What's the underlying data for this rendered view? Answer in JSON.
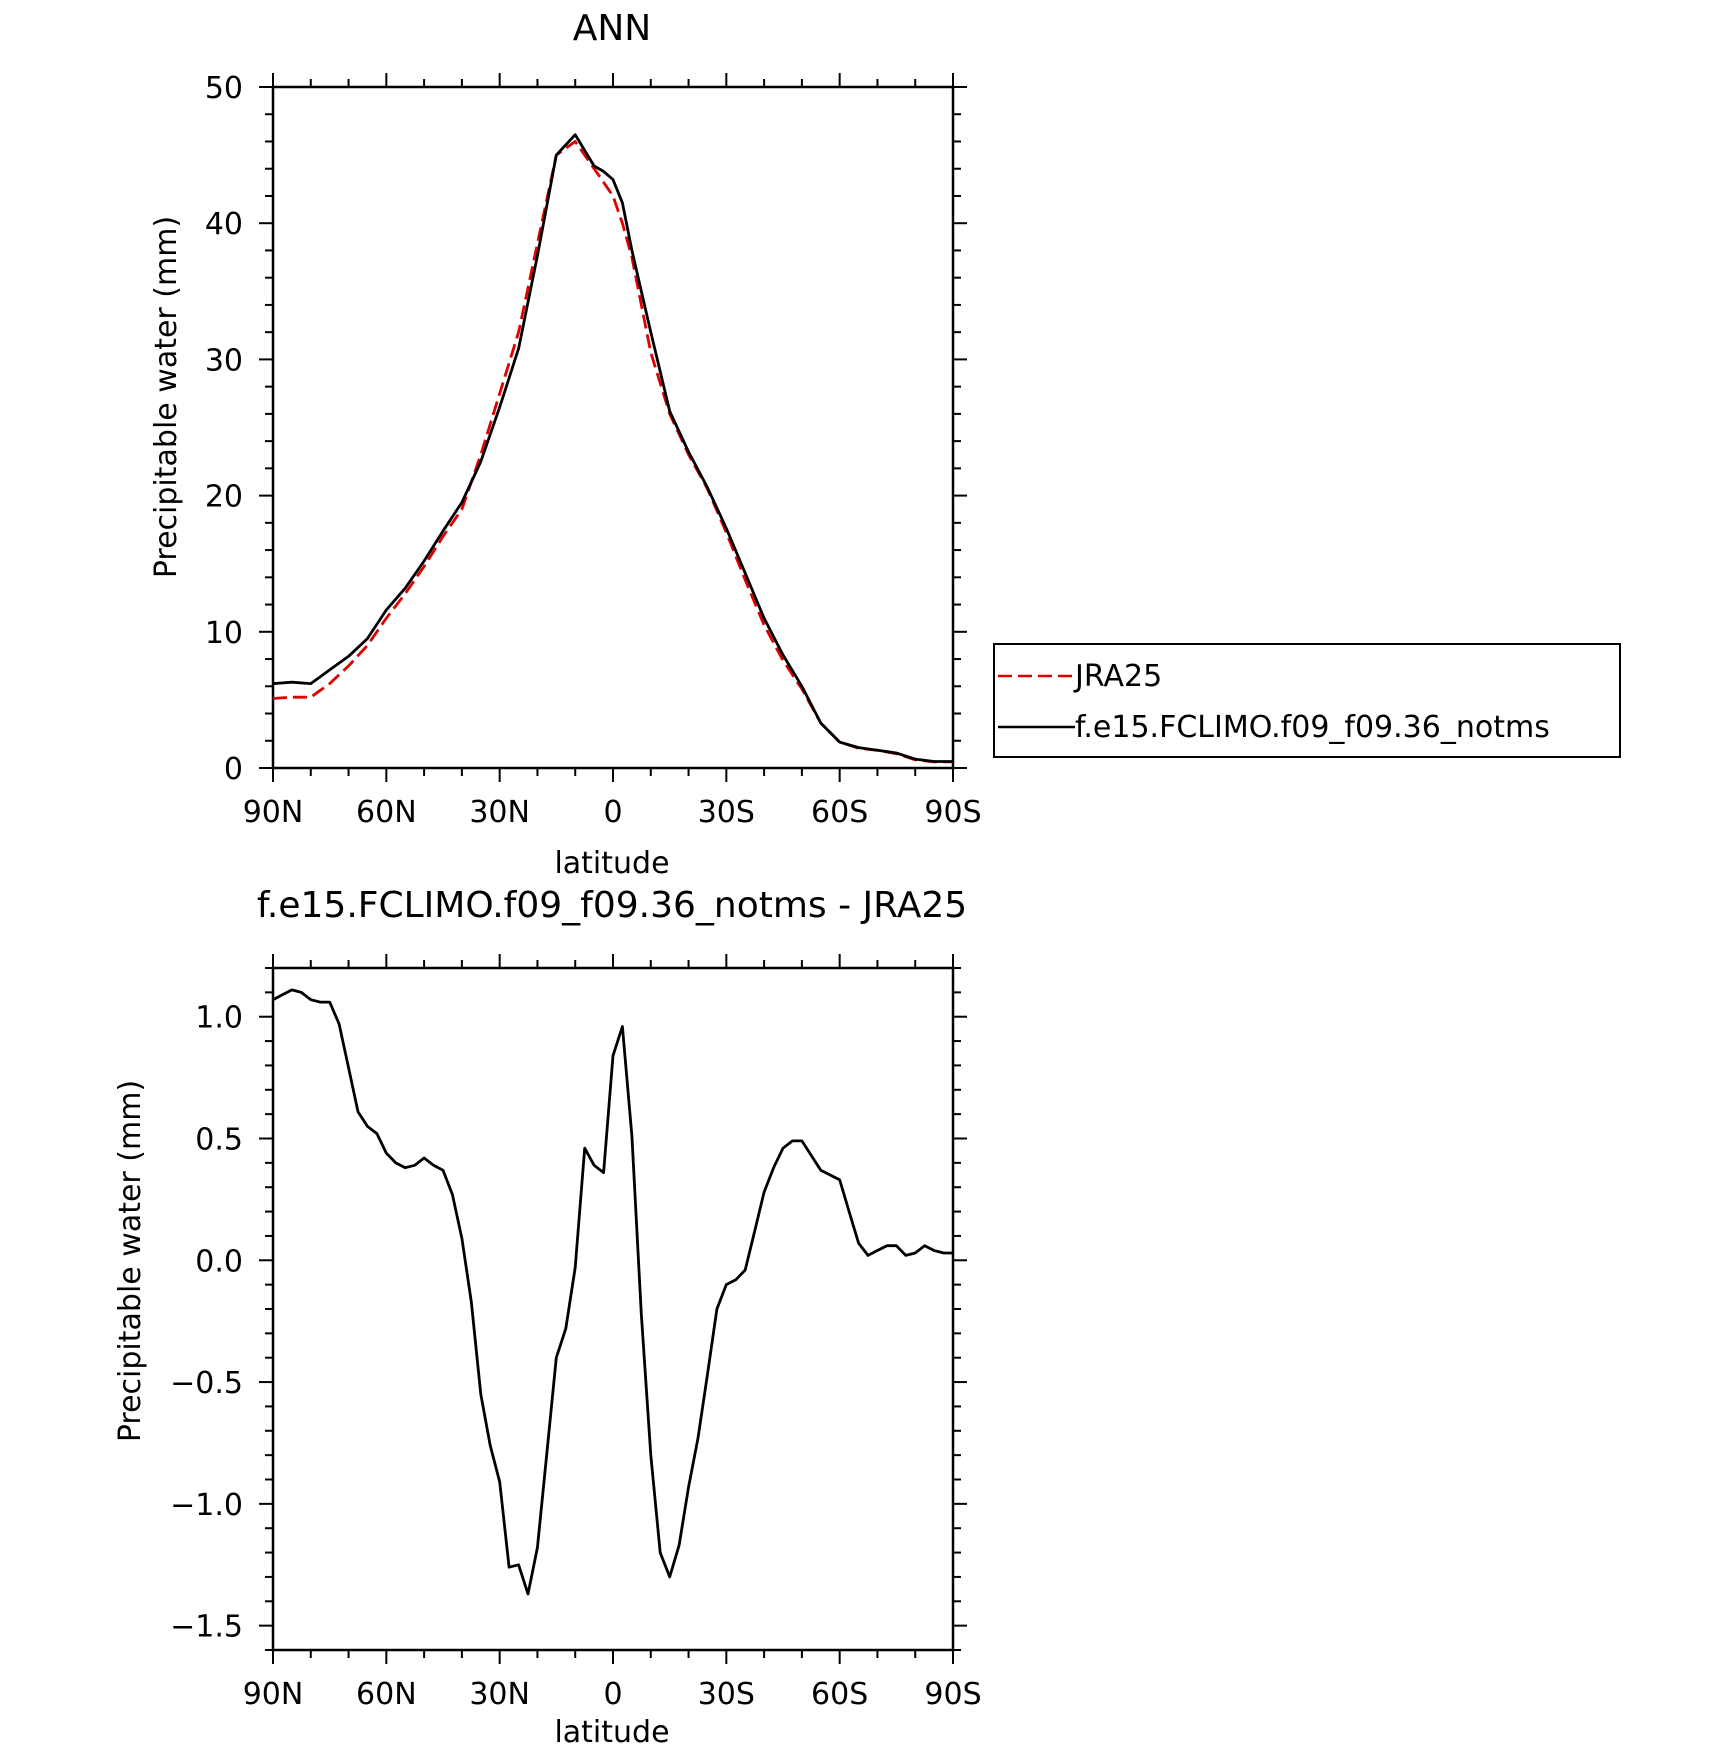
{
  "chart_data": [
    {
      "type": "line",
      "title": "ANN",
      "xlabel": "latitude",
      "ylabel": "Precipitable water (mm)",
      "xlim": [
        90,
        -90
      ],
      "ylim": [
        0,
        50
      ],
      "x_ticks": [
        {
          "value": 90,
          "label": "90N"
        },
        {
          "value": 60,
          "label": "60N"
        },
        {
          "value": 30,
          "label": "30N"
        },
        {
          "value": 0,
          "label": "0"
        },
        {
          "value": -30,
          "label": "30S"
        },
        {
          "value": -60,
          "label": "60S"
        },
        {
          "value": -90,
          "label": "90S"
        }
      ],
      "y_ticks": [
        {
          "value": 0,
          "label": "0"
        },
        {
          "value": 10,
          "label": "10"
        },
        {
          "value": 20,
          "label": "20"
        },
        {
          "value": 30,
          "label": "30"
        },
        {
          "value": 40,
          "label": "40"
        },
        {
          "value": 50,
          "label": "50"
        }
      ],
      "legend": {
        "position": "right",
        "framed": true
      },
      "series": [
        {
          "name": "JRA25",
          "color": "#e00000",
          "dash": "dashed",
          "x": [
            90,
            85,
            80,
            75,
            70,
            65,
            60,
            55,
            50,
            45,
            40,
            35,
            30,
            25,
            20,
            15,
            10,
            5,
            2.5,
            0,
            -2.5,
            -5,
            -10,
            -15,
            -20,
            -25,
            -30,
            -35,
            -40,
            -45,
            -50,
            -55,
            -60,
            -65,
            -70,
            -75,
            -80,
            -85,
            -87.5,
            -90
          ],
          "y": [
            5.1,
            5.2,
            5.2,
            6.2,
            7.5,
            9.0,
            11.0,
            12.8,
            14.8,
            17.0,
            19.0,
            23.0,
            27.5,
            32.0,
            38.5,
            45.0,
            46.0,
            44.0,
            43.0,
            42.0,
            40.0,
            37.5,
            30.5,
            26.0,
            23.0,
            20.5,
            17.3,
            13.8,
            10.5,
            7.9,
            5.8,
            3.3,
            1.9,
            1.45,
            1.3,
            1.05,
            0.6,
            0.45,
            0.45,
            0.45
          ]
        },
        {
          "name": "f.e15.FCLIMO.f09_f09.36_notms",
          "color": "#000000",
          "dash": "solid",
          "x": [
            90,
            85,
            80,
            75,
            70,
            65,
            60,
            55,
            50,
            45,
            40,
            35,
            30,
            25,
            20,
            15,
            10,
            5,
            2.5,
            0,
            -2.5,
            -5,
            -10,
            -15,
            -20,
            -25,
            -30,
            -35,
            -40,
            -45,
            -50,
            -55,
            -60,
            -65,
            -70,
            -75,
            -80,
            -85,
            -87.5,
            -90
          ],
          "y": [
            6.2,
            6.3,
            6.2,
            7.2,
            8.2,
            9.5,
            11.6,
            13.2,
            15.2,
            17.4,
            19.5,
            22.5,
            26.5,
            30.8,
            37.6,
            45.0,
            46.5,
            44.2,
            43.8,
            43.2,
            41.5,
            38.0,
            32.0,
            26.2,
            23.2,
            20.6,
            17.6,
            14.3,
            11.0,
            8.3,
            6.0,
            3.3,
            1.9,
            1.5,
            1.3,
            1.1,
            0.65,
            0.48,
            0.48,
            0.48
          ]
        }
      ]
    },
    {
      "type": "line",
      "title": "f.e15.FCLIMO.f09_f09.36_notms - JRA25",
      "xlabel": "latitude",
      "ylabel": "Precipitable water (mm)",
      "xlim": [
        90,
        -90
      ],
      "ylim": [
        -1.6,
        1.2
      ],
      "x_ticks": [
        {
          "value": 90,
          "label": "90N"
        },
        {
          "value": 60,
          "label": "60N"
        },
        {
          "value": 30,
          "label": "30N"
        },
        {
          "value": 0,
          "label": "0"
        },
        {
          "value": -30,
          "label": "30S"
        },
        {
          "value": -60,
          "label": "60S"
        },
        {
          "value": -90,
          "label": "90S"
        }
      ],
      "y_ticks": [
        {
          "value": -1.5,
          "label": "−1.5"
        },
        {
          "value": -1.0,
          "label": "−1.0"
        },
        {
          "value": -0.5,
          "label": "−0.5"
        },
        {
          "value": 0.0,
          "label": "0.0"
        },
        {
          "value": 0.5,
          "label": "0.5"
        },
        {
          "value": 1.0,
          "label": "1.0"
        }
      ],
      "series": [
        {
          "color": "#000000",
          "dash": "solid",
          "x": [
            90,
            87.5,
            85,
            82.5,
            80,
            77.5,
            75,
            72.5,
            70,
            67.5,
            65,
            62.5,
            60,
            57.5,
            55,
            52.5,
            50,
            47.5,
            45,
            42.5,
            40,
            37.5,
            35,
            32.5,
            30,
            27.5,
            25,
            22.5,
            20,
            17.5,
            15,
            12.5,
            10,
            7.5,
            5,
            2.5,
            0,
            -2.5,
            -5,
            -7.5,
            -10,
            -12.5,
            -15,
            -17.5,
            -20,
            -22.5,
            -25,
            -27.5,
            -30,
            -32.5,
            -35,
            -37.5,
            -40,
            -42.5,
            -45,
            -47.5,
            -50,
            -52.5,
            -55,
            -57.5,
            -60,
            -62.5,
            -65,
            -67.5,
            -70,
            -72.5,
            -75,
            -77.5,
            -80,
            -82.5,
            -85,
            -87.5,
            -90
          ],
          "y": [
            1.07,
            1.09,
            1.11,
            1.1,
            1.07,
            1.06,
            1.06,
            0.97,
            0.79,
            0.61,
            0.55,
            0.52,
            0.44,
            0.4,
            0.38,
            0.39,
            0.42,
            0.39,
            0.37,
            0.27,
            0.09,
            -0.17,
            -0.55,
            -0.76,
            -0.91,
            -1.26,
            -1.25,
            -1.37,
            -1.18,
            -0.79,
            -0.4,
            -0.28,
            -0.03,
            0.46,
            0.39,
            0.36,
            0.84,
            0.96,
            0.51,
            -0.22,
            -0.8,
            -1.2,
            -1.3,
            -1.17,
            -0.93,
            -0.73,
            -0.47,
            -0.2,
            -0.1,
            -0.08,
            -0.04,
            0.12,
            0.28,
            0.38,
            0.46,
            0.49,
            0.49,
            0.43,
            0.37,
            0.35,
            0.33,
            0.2,
            0.07,
            0.02,
            0.04,
            0.06,
            0.06,
            0.02,
            0.03,
            0.06,
            0.04,
            0.03,
            0.03
          ]
        }
      ]
    }
  ]
}
